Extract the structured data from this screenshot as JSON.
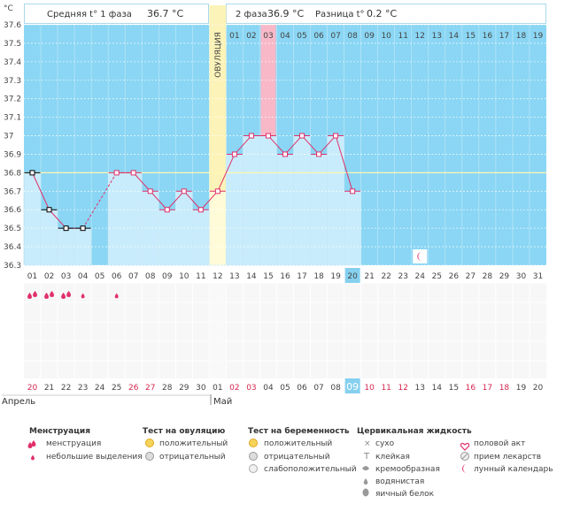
{
  "header": {
    "phase1_label": "Средняя t° 1 фаза",
    "phase1_value": "36.7 °C",
    "phase2_label": "2 фаза",
    "phase2_value": "36.9 °C",
    "diff_label": "Разница t°",
    "diff_value": "0.2 °C"
  },
  "unit_label": "°C",
  "ovulation_label": "ОВУЛЯЦИЯ",
  "chart_data": {
    "type": "line",
    "ylim": [
      36.3,
      37.6
    ],
    "y_ticks": [
      "37.6",
      "37.5",
      "37.4",
      "37.3",
      "37.2",
      "37.1",
      "37",
      "36.9",
      "36.8",
      "36.7",
      "36.6",
      "36.5",
      "36.4",
      "36.3"
    ],
    "coverline": 36.8,
    "ovulation_index": 11,
    "highlight_index": 14,
    "today_index": 19,
    "phase2_days": [
      "01",
      "02",
      "03",
      "04",
      "05",
      "06",
      "07",
      "08",
      "09",
      "10",
      "11",
      "12",
      "13",
      "14",
      "15",
      "16",
      "17",
      "18",
      "19"
    ],
    "cycle_days": [
      "01",
      "02",
      "03",
      "04",
      "05",
      "06",
      "07",
      "08",
      "09",
      "10",
      "11",
      "12",
      "13",
      "14",
      "15",
      "16",
      "17",
      "18",
      "19",
      "20",
      "21",
      "22",
      "23",
      "24",
      "25",
      "26",
      "27",
      "28",
      "29",
      "30",
      "31"
    ],
    "temperatures": [
      36.8,
      36.6,
      36.5,
      36.5,
      null,
      36.8,
      36.8,
      36.7,
      36.6,
      36.7,
      36.6,
      36.7,
      36.9,
      37.0,
      37.0,
      36.9,
      37.0,
      36.9,
      37.0,
      36.7,
      null,
      null,
      null,
      null,
      null,
      null,
      null,
      null,
      null,
      null,
      null
    ],
    "date_labels": [
      "20",
      "21",
      "22",
      "23",
      "24",
      "25",
      "26",
      "27",
      "28",
      "29",
      "30",
      "01",
      "02",
      "03",
      "04",
      "05",
      "06",
      "07",
      "08",
      "09",
      "10",
      "11",
      "12",
      "13",
      "14",
      "15",
      "16",
      "17",
      "18",
      "19",
      "20"
    ],
    "red_dates": [
      0,
      6,
      7,
      12,
      13,
      20,
      21,
      22,
      26,
      27,
      28
    ],
    "months": [
      "Апрель",
      "Май"
    ],
    "menstruation": [
      2,
      2,
      2,
      1,
      0,
      1,
      0,
      0,
      0,
      0,
      0,
      0,
      0,
      0,
      0,
      0,
      0,
      0,
      0,
      0,
      0,
      0,
      0,
      0,
      0,
      0,
      0,
      0,
      0,
      0,
      0
    ],
    "moon_index": 23
  },
  "legend": {
    "menstruation": {
      "title": "Менструация",
      "items": [
        "менструация",
        "небольшие выделения"
      ]
    },
    "ovulation_test": {
      "title": "Тест на овуляцию",
      "items": [
        "положительный",
        "отрицательный"
      ]
    },
    "pregnancy_test": {
      "title": "Тест на беременность",
      "items": [
        "положительный",
        "отрицательный",
        "слабоположительный"
      ]
    },
    "cervical": {
      "title": "Цервикальная жидкость",
      "items": [
        "сухо",
        "клейкая",
        "кремообразная",
        "водянистая",
        "яичный белок"
      ]
    },
    "other": {
      "items": [
        "половой акт",
        "прием лекарств",
        "лунный календарь"
      ]
    }
  },
  "colors": {
    "sky": "#8ad6f4",
    "bar": "#c8ecfb",
    "ovulation": "#fbf3b8",
    "highlight": "#f8b8c8",
    "line": "#e0306a",
    "coverline": "#fff8b0",
    "today": "#86d0ef"
  }
}
